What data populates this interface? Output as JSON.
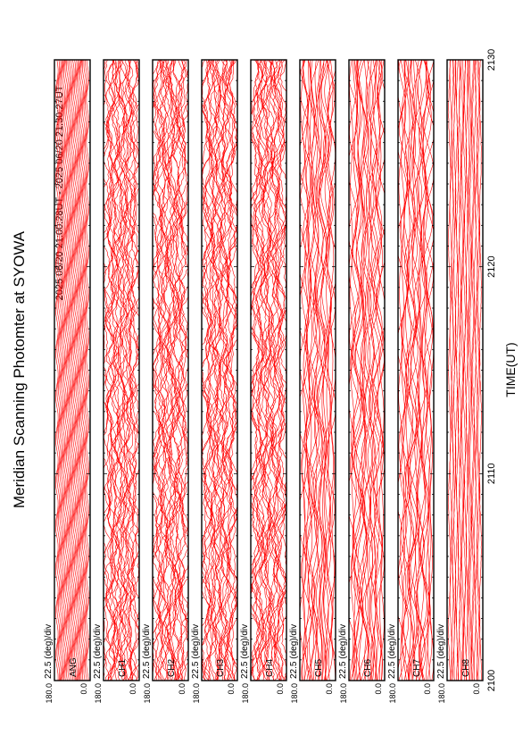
{
  "chart_data": {
    "type": "line",
    "title": "Meridian Scanning Photomter at SYOWA",
    "time_range_label": "2025 06/20 21:00:28UT - 2025 06/20 21:30:27UT",
    "xlabel": "TIME(UT)",
    "x_ticks": [
      "2100",
      "2110",
      "2120",
      "2130"
    ],
    "x_tick_values": [
      2100,
      2110,
      2120,
      2130
    ],
    "xlim": [
      2100,
      2130
    ],
    "y_ticks": [
      "180.0",
      "0.0"
    ],
    "ylim": [
      0,
      180
    ],
    "scale_label": "22.5 (deg)/div",
    "line_color": "#ff0000",
    "grid": false,
    "panels": [
      {
        "channel": "ANG",
        "kind": "angle",
        "traces": 24
      },
      {
        "channel": "CH1",
        "kind": "noisy",
        "traces": 24
      },
      {
        "channel": "CH2",
        "kind": "noisy",
        "traces": 24
      },
      {
        "channel": "CH3",
        "kind": "noisy",
        "traces": 24
      },
      {
        "channel": "CH4",
        "kind": "noisy",
        "traces": 24
      },
      {
        "channel": "CH5",
        "kind": "smooth",
        "traces": 24
      },
      {
        "channel": "CH6",
        "kind": "smooth",
        "traces": 24
      },
      {
        "channel": "CH7",
        "kind": "smooth",
        "traces": 24
      },
      {
        "channel": "CH8",
        "kind": "flat",
        "traces": 24
      }
    ]
  }
}
